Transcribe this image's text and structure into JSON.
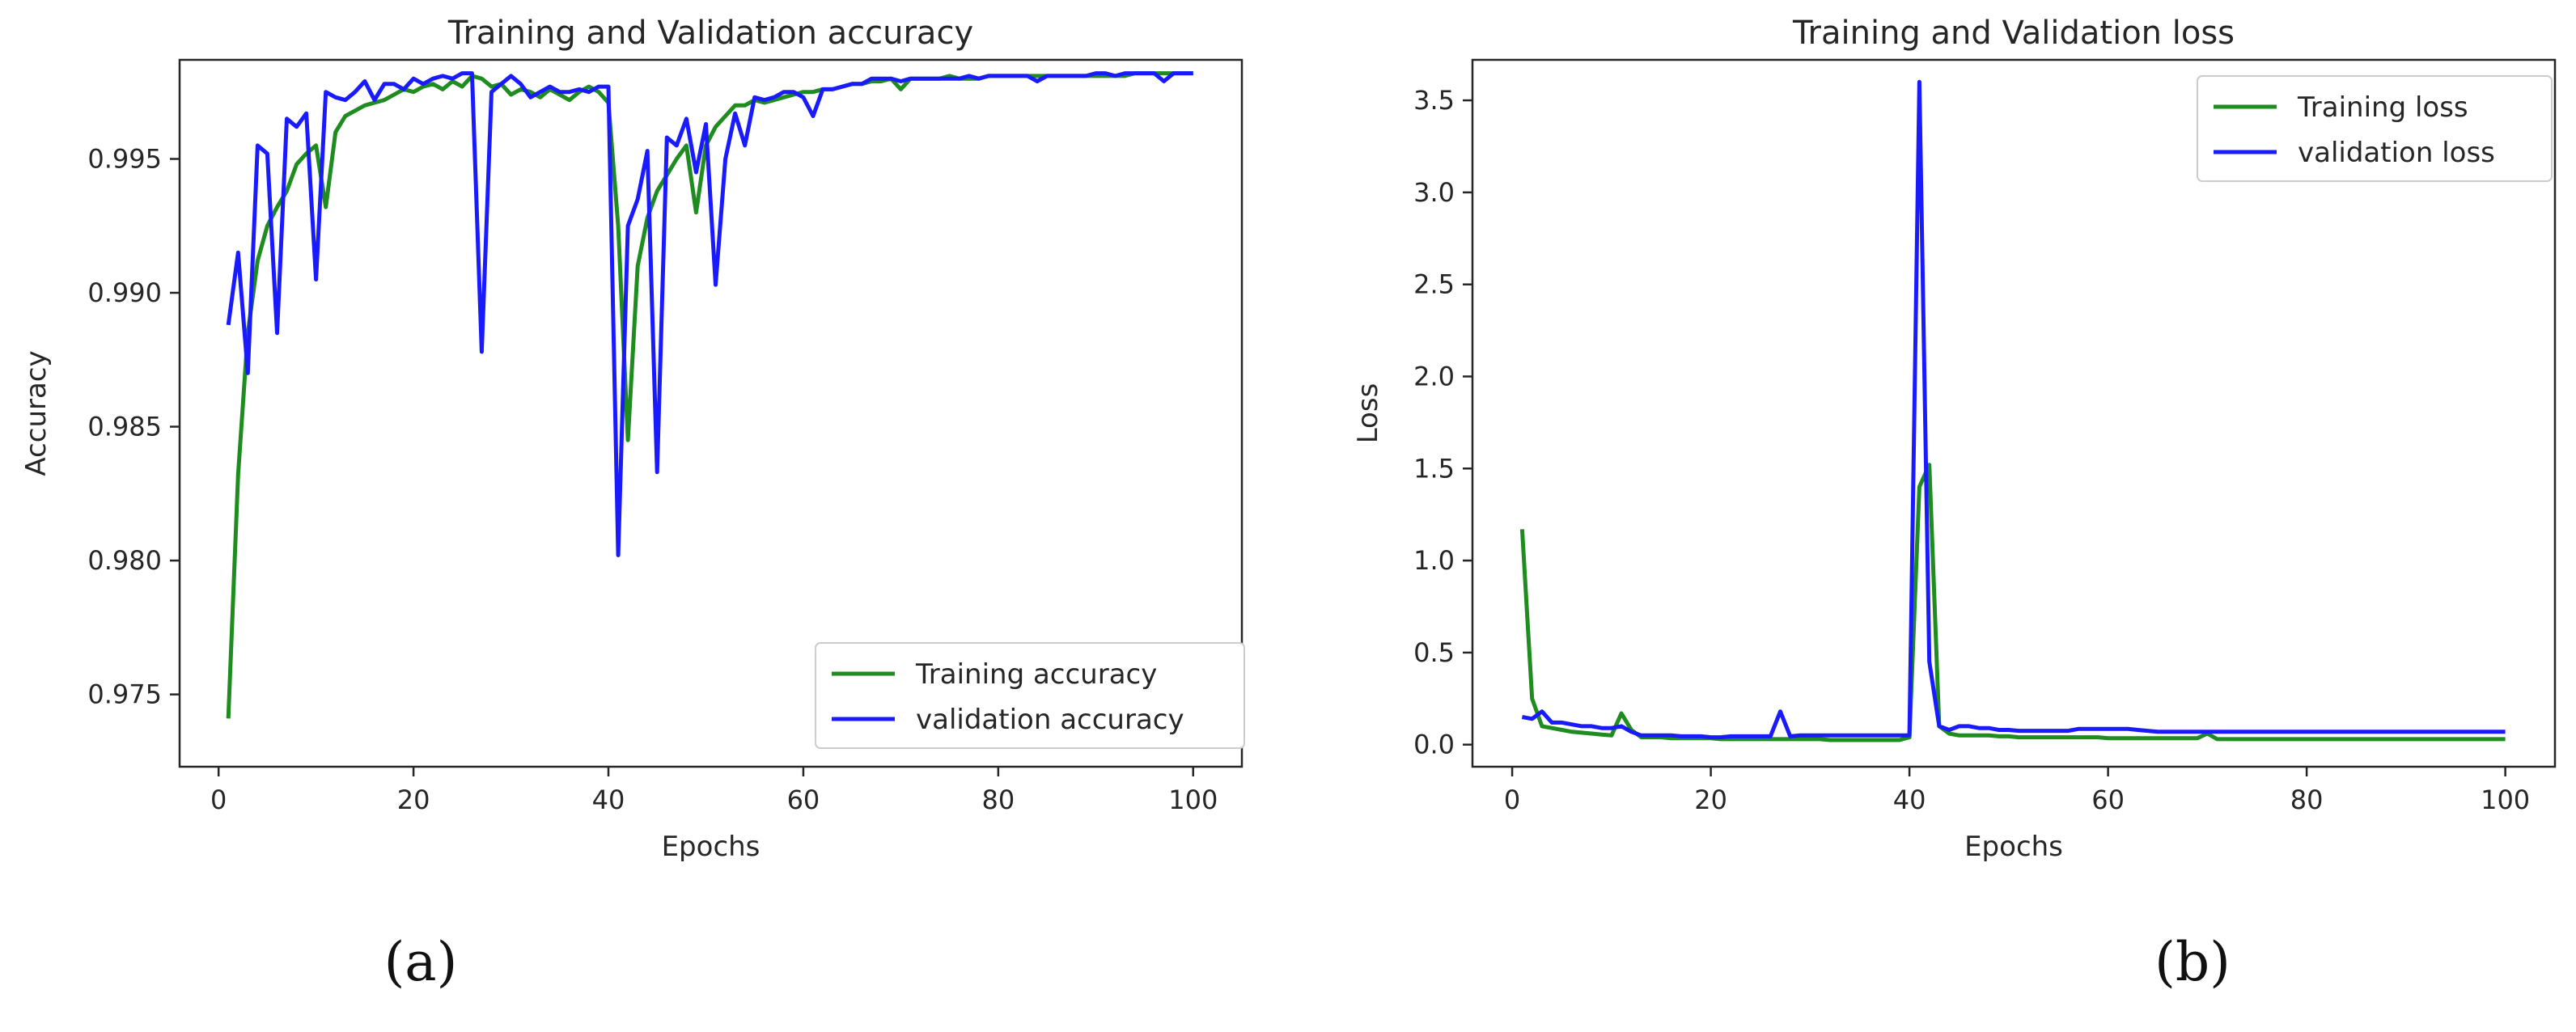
{
  "chart_data": [
    {
      "type": "line",
      "title": "Training and Validation accuracy",
      "xlabel": "Epochs",
      "ylabel": "Accuracy",
      "xlim": [
        -4,
        105
      ],
      "ylim": [
        0.9723,
        0.9987
      ],
      "xticks": [
        "0",
        "20",
        "40",
        "60",
        "80",
        "100"
      ],
      "yticks": [
        "0.975",
        "0.980",
        "0.985",
        "0.990",
        "0.995"
      ],
      "legend_position": "lower-right",
      "grid": false,
      "panel_label": "(a)",
      "series": [
        {
          "name": "Training accuracy",
          "color": "#1f8c1f",
          "x": [
            1,
            2,
            3,
            4,
            5,
            6,
            7,
            8,
            9,
            10,
            11,
            12,
            13,
            14,
            15,
            16,
            17,
            18,
            19,
            20,
            21,
            22,
            23,
            24,
            25,
            26,
            27,
            28,
            29,
            30,
            31,
            32,
            33,
            34,
            35,
            36,
            37,
            38,
            39,
            40,
            41,
            42,
            43,
            44,
            45,
            46,
            47,
            48,
            49,
            50,
            51,
            52,
            53,
            54,
            55,
            56,
            57,
            58,
            59,
            60,
            61,
            62,
            63,
            64,
            65,
            66,
            67,
            68,
            69,
            70,
            71,
            72,
            73,
            74,
            75,
            76,
            77,
            78,
            79,
            80,
            81,
            82,
            83,
            84,
            85,
            86,
            87,
            88,
            89,
            90,
            91,
            92,
            93,
            94,
            95,
            96,
            97,
            98,
            99,
            100
          ],
          "y": [
            0.9741,
            0.9832,
            0.9885,
            0.9912,
            0.9925,
            0.9932,
            0.9938,
            0.9948,
            0.9952,
            0.9955,
            0.9932,
            0.996,
            0.9966,
            0.9968,
            0.997,
            0.9971,
            0.9972,
            0.9974,
            0.9976,
            0.9975,
            0.9977,
            0.9978,
            0.9976,
            0.9979,
            0.9977,
            0.9981,
            0.998,
            0.9977,
            0.9978,
            0.9974,
            0.9976,
            0.9975,
            0.9973,
            0.9976,
            0.9974,
            0.9972,
            0.9975,
            0.9977,
            0.9975,
            0.9971,
            0.9925,
            0.9845,
            0.991,
            0.9928,
            0.9938,
            0.9944,
            0.995,
            0.9955,
            0.993,
            0.9955,
            0.9962,
            0.9966,
            0.997,
            0.997,
            0.9972,
            0.9971,
            0.9972,
            0.9973,
            0.9974,
            0.9975,
            0.9975,
            0.9976,
            0.9976,
            0.9977,
            0.9978,
            0.9978,
            0.9979,
            0.9979,
            0.998,
            0.9976,
            0.998,
            0.998,
            0.998,
            0.998,
            0.9981,
            0.998,
            0.998,
            0.998,
            0.9981,
            0.9981,
            0.9981,
            0.9981,
            0.9981,
            0.9981,
            0.9981,
            0.9981,
            0.9981,
            0.9981,
            0.9981,
            0.9981,
            0.9981,
            0.9981,
            0.9981,
            0.9982,
            0.9982,
            0.9982,
            0.9982,
            0.9982,
            0.9982,
            0.9982
          ]
        },
        {
          "name": "validation accuracy",
          "color": "#1a1aff",
          "x": [
            1,
            2,
            3,
            4,
            5,
            6,
            7,
            8,
            9,
            10,
            11,
            12,
            13,
            14,
            15,
            16,
            17,
            18,
            19,
            20,
            21,
            22,
            23,
            24,
            25,
            26,
            27,
            28,
            29,
            30,
            31,
            32,
            33,
            34,
            35,
            36,
            37,
            38,
            39,
            40,
            41,
            42,
            43,
            44,
            45,
            46,
            47,
            48,
            49,
            50,
            51,
            52,
            53,
            54,
            55,
            56,
            57,
            58,
            59,
            60,
            61,
            62,
            63,
            64,
            65,
            66,
            67,
            68,
            69,
            70,
            71,
            72,
            73,
            74,
            75,
            76,
            77,
            78,
            79,
            80,
            81,
            82,
            83,
            84,
            85,
            86,
            87,
            88,
            89,
            90,
            91,
            92,
            93,
            94,
            95,
            96,
            97,
            98,
            99,
            100
          ],
          "y": [
            0.9888,
            0.9915,
            0.987,
            0.9955,
            0.9952,
            0.9885,
            0.9965,
            0.9962,
            0.9967,
            0.9905,
            0.9975,
            0.9973,
            0.9972,
            0.9975,
            0.9979,
            0.9972,
            0.9978,
            0.9978,
            0.9976,
            0.998,
            0.9978,
            0.998,
            0.9981,
            0.998,
            0.9982,
            0.9982,
            0.9878,
            0.9975,
            0.9978,
            0.9981,
            0.9978,
            0.9973,
            0.9975,
            0.9977,
            0.9975,
            0.9975,
            0.9976,
            0.9975,
            0.9977,
            0.9977,
            0.9802,
            0.9925,
            0.9935,
            0.9953,
            0.9833,
            0.9958,
            0.9955,
            0.9965,
            0.9945,
            0.9963,
            0.9903,
            0.995,
            0.9967,
            0.9955,
            0.9973,
            0.9972,
            0.9973,
            0.9975,
            0.9975,
            0.9973,
            0.9966,
            0.9976,
            0.9976,
            0.9977,
            0.9978,
            0.9978,
            0.998,
            0.998,
            0.998,
            0.9979,
            0.998,
            0.998,
            0.998,
            0.998,
            0.998,
            0.998,
            0.9981,
            0.998,
            0.9981,
            0.9981,
            0.9981,
            0.9981,
            0.9981,
            0.9979,
            0.9981,
            0.9981,
            0.9981,
            0.9981,
            0.9981,
            0.9982,
            0.9982,
            0.9981,
            0.9982,
            0.9982,
            0.9982,
            0.9982,
            0.9979,
            0.9982,
            0.9982,
            0.9982
          ]
        }
      ]
    },
    {
      "type": "line",
      "title": "Training and Validation loss",
      "xlabel": "Epochs",
      "ylabel": "Loss",
      "xlim": [
        -4,
        105
      ],
      "ylim": [
        -0.12,
        3.72
      ],
      "xticks": [
        "0",
        "20",
        "40",
        "60",
        "80",
        "100"
      ],
      "yticks": [
        "0.0",
        "0.5",
        "1.0",
        "1.5",
        "2.0",
        "2.5",
        "3.0",
        "3.5"
      ],
      "legend_position": "upper-right",
      "grid": false,
      "panel_label": "(b)",
      "series": [
        {
          "name": "Training loss",
          "color": "#1f8c1f",
          "x": [
            1,
            2,
            3,
            4,
            5,
            6,
            7,
            8,
            9,
            10,
            11,
            12,
            13,
            14,
            15,
            16,
            17,
            18,
            19,
            20,
            21,
            22,
            23,
            24,
            25,
            26,
            27,
            28,
            29,
            30,
            31,
            32,
            33,
            34,
            35,
            36,
            37,
            38,
            39,
            40,
            41,
            42,
            43,
            44,
            45,
            46,
            47,
            48,
            49,
            50,
            51,
            52,
            53,
            54,
            55,
            56,
            57,
            58,
            59,
            60,
            61,
            62,
            63,
            64,
            65,
            66,
            67,
            68,
            69,
            70,
            71,
            72,
            73,
            74,
            75,
            76,
            77,
            78,
            79,
            80,
            81,
            82,
            83,
            84,
            85,
            86,
            87,
            88,
            89,
            90,
            91,
            92,
            93,
            94,
            95,
            96,
            97,
            98,
            99,
            100
          ],
          "y": [
            1.17,
            0.25,
            0.1,
            0.09,
            0.08,
            0.07,
            0.065,
            0.06,
            0.055,
            0.05,
            0.17,
            0.08,
            0.04,
            0.04,
            0.04,
            0.035,
            0.035,
            0.035,
            0.035,
            0.035,
            0.03,
            0.03,
            0.03,
            0.03,
            0.03,
            0.03,
            0.03,
            0.03,
            0.03,
            0.03,
            0.03,
            0.025,
            0.025,
            0.025,
            0.025,
            0.025,
            0.025,
            0.025,
            0.025,
            0.04,
            1.4,
            1.52,
            0.1,
            0.06,
            0.05,
            0.05,
            0.05,
            0.05,
            0.045,
            0.045,
            0.04,
            0.04,
            0.04,
            0.04,
            0.04,
            0.04,
            0.04,
            0.04,
            0.04,
            0.035,
            0.035,
            0.035,
            0.035,
            0.035,
            0.035,
            0.035,
            0.035,
            0.035,
            0.035,
            0.06,
            0.03,
            0.03,
            0.03,
            0.03,
            0.03,
            0.03,
            0.03,
            0.03,
            0.03,
            0.03,
            0.03,
            0.03,
            0.03,
            0.03,
            0.03,
            0.03,
            0.03,
            0.03,
            0.03,
            0.03,
            0.03,
            0.03,
            0.03,
            0.03,
            0.03,
            0.03,
            0.03,
            0.03,
            0.03,
            0.03
          ]
        },
        {
          "name": "validation loss",
          "color": "#1a1aff",
          "x": [
            1,
            2,
            3,
            4,
            5,
            6,
            7,
            8,
            9,
            10,
            11,
            12,
            13,
            14,
            15,
            16,
            17,
            18,
            19,
            20,
            21,
            22,
            23,
            24,
            25,
            26,
            27,
            28,
            29,
            30,
            31,
            32,
            33,
            34,
            35,
            36,
            37,
            38,
            39,
            40,
            41,
            42,
            43,
            44,
            45,
            46,
            47,
            48,
            49,
            50,
            51,
            52,
            53,
            54,
            55,
            56,
            57,
            58,
            59,
            60,
            61,
            62,
            63,
            64,
            65,
            66,
            67,
            68,
            69,
            70,
            71,
            72,
            73,
            74,
            75,
            76,
            77,
            78,
            79,
            80,
            81,
            82,
            83,
            84,
            85,
            86,
            87,
            88,
            89,
            90,
            91,
            92,
            93,
            94,
            95,
            96,
            97,
            98,
            99,
            100
          ],
          "y": [
            0.15,
            0.14,
            0.18,
            0.12,
            0.12,
            0.11,
            0.1,
            0.1,
            0.09,
            0.09,
            0.1,
            0.07,
            0.05,
            0.05,
            0.05,
            0.05,
            0.045,
            0.045,
            0.045,
            0.04,
            0.04,
            0.045,
            0.045,
            0.045,
            0.045,
            0.045,
            0.18,
            0.045,
            0.05,
            0.05,
            0.05,
            0.05,
            0.05,
            0.05,
            0.05,
            0.05,
            0.05,
            0.05,
            0.05,
            0.05,
            3.6,
            0.45,
            0.1,
            0.08,
            0.1,
            0.1,
            0.09,
            0.09,
            0.08,
            0.08,
            0.075,
            0.075,
            0.075,
            0.075,
            0.075,
            0.075,
            0.085,
            0.085,
            0.085,
            0.085,
            0.085,
            0.085,
            0.08,
            0.075,
            0.07,
            0.07,
            0.07,
            0.07,
            0.07,
            0.07,
            0.07,
            0.07,
            0.07,
            0.07,
            0.07,
            0.07,
            0.07,
            0.07,
            0.07,
            0.07,
            0.07,
            0.07,
            0.07,
            0.07,
            0.07,
            0.07,
            0.07,
            0.07,
            0.07,
            0.07,
            0.07,
            0.07,
            0.07,
            0.07,
            0.07,
            0.07,
            0.07,
            0.07,
            0.07,
            0.07
          ]
        }
      ]
    }
  ]
}
